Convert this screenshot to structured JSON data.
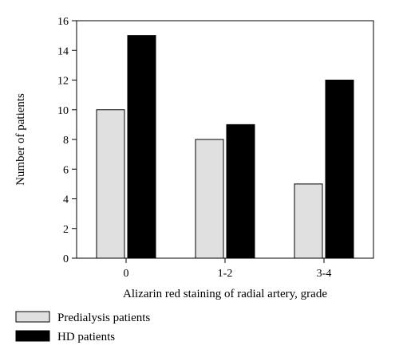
{
  "chart_data": {
    "type": "bar",
    "categories": [
      "0",
      "1-2",
      "3-4"
    ],
    "series": [
      {
        "name": "Predialysis patients",
        "values": [
          10,
          8,
          5
        ],
        "color": "#e0e0e0"
      },
      {
        "name": "HD patients",
        "values": [
          15,
          9,
          12
        ],
        "color": "#000000"
      }
    ],
    "xlabel": "Alizarin red staining of radial artery, grade",
    "ylabel": "Number of patients",
    "ylim": [
      0,
      16
    ],
    "yticks": [
      0,
      2,
      4,
      6,
      8,
      10,
      12,
      14,
      16
    ],
    "grid": false,
    "legend_position": "bottom-left"
  }
}
